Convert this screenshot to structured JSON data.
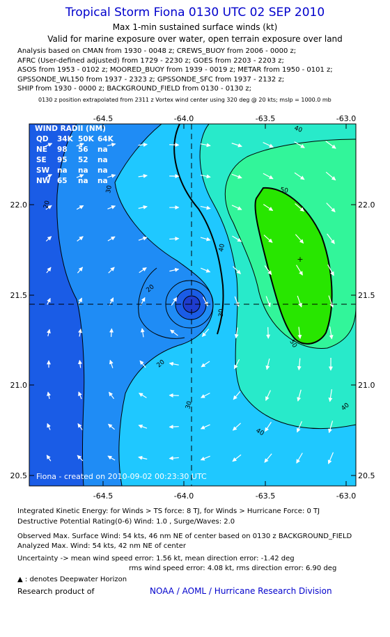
{
  "header": {
    "title": "Tropical Storm Fiona 0130 UTC 02 SEP 2010",
    "subtitle1": "Max 1-min sustained surface winds (kt)",
    "subtitle2": "Valid for marine exposure over water, open terrain exposure over land"
  },
  "analysis_lines": [
    "Analysis based on CMAN from 1930 - 0048 z; CREWS_BUOY from 2006 - 0000 z;",
    "AFRC (User-defined adjusted) from 1729 - 2230 z; GOES from 2203 - 2203 z;",
    "ASOS from 1953 - 0102 z; MOORED_BUOY from 1939 - 0019 z; METAR from 1950 - 0101 z;",
    "GPSSONDE_WL150 from 1937 - 2323 z; GPSSONDE_SFC from 1937 - 2132 z;",
    "SHIP from 1930 - 0000 z; BACKGROUND_FIELD from 0130 - 0130 z;"
  ],
  "position_line": "0130 z position extrapolated from 2311 z Vortex wind center using 320 deg @ 20 kts; mslp = 1000.0 mb",
  "map": {
    "lon_ticks": [
      "-64.5",
      "-64.0",
      "-63.5",
      "-63.0"
    ],
    "lat_ticks": [
      "22.0",
      "21.5",
      "21.0",
      "20.5"
    ],
    "contour_labels": [
      "20",
      "20",
      "20",
      "30",
      "30",
      "30",
      "40",
      "40",
      "40",
      "40",
      "50",
      "50"
    ],
    "colors": {
      "c10": "#1a5ce6",
      "c20": "#1f8cf5",
      "c30": "#1fc8ff",
      "c40": "#28eaca",
      "c50": "#32f59a",
      "c60": "#28e600",
      "eye": "#1e3ccf"
    },
    "wind_radii": {
      "header": "WIND RADII (NM)",
      "columns": [
        "QD",
        "34K",
        "50K",
        "64K"
      ],
      "rows": [
        [
          "NE",
          "98",
          "56",
          "na"
        ],
        [
          "SE",
          "95",
          "52",
          "na"
        ],
        [
          "SW",
          "na",
          "na",
          "na"
        ],
        [
          "NW",
          "65",
          "na",
          "na"
        ]
      ]
    },
    "credit": "Fiona - created on 2010-09-02 00:23:30 UTC"
  },
  "footer": {
    "ike": "Integrated Kinetic Energy:  for Winds > TS force: 8 TJ,  for Winds > Hurricane Force: 0 TJ",
    "dpr": "Destructive Potential Rating(0-6)   Wind: 1.0 , Surge/Waves: 2.0",
    "obs_max": "Observed Max. Surface Wind: 54 kts, 46 nm NE of center based on 0130 z BACKGROUND_FIELD",
    "an_max": "Analyzed Max. Wind: 54 kts, 42 nm NE of center",
    "unc1": "Uncertainty -> mean wind speed error: 1.56 kt,   mean direction error:  -1.42 deg",
    "unc2": "rms wind speed error: 4.08 kt,    rms direction error: 6.90 deg",
    "legend": ": denotes Deepwater Horizon",
    "research": "Research product of",
    "org": "NOAA / AOML / Hurricane Research Division"
  }
}
